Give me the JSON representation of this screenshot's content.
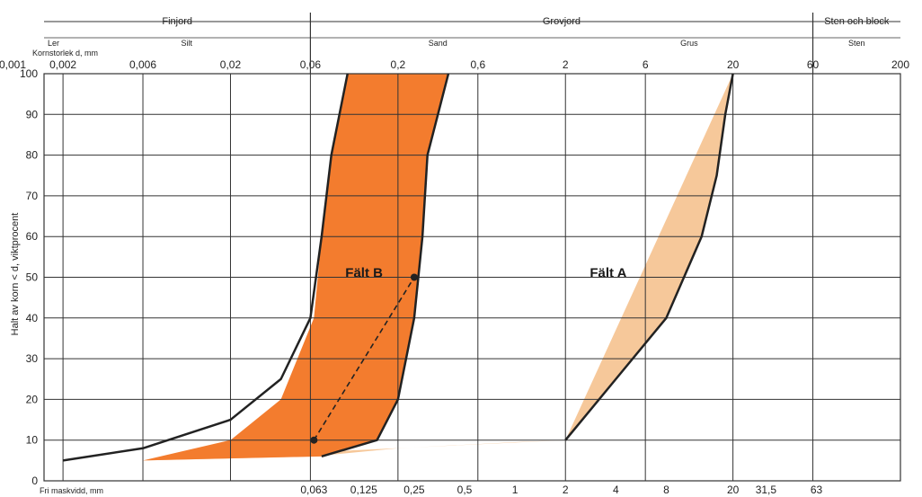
{
  "chart_data": {
    "type": "area",
    "ylabel": "Halt av korn < d, viktprocent",
    "x_scale": "log",
    "xlim": [
      0.001,
      200
    ],
    "ylim": [
      0,
      100
    ],
    "grid": true,
    "top_ticks": [
      "0,001",
      "0,002",
      "0,006",
      "0,02",
      "0,06",
      "0,2",
      "0,6",
      "2",
      "6",
      "20",
      "60",
      "200"
    ],
    "top_tick_values": [
      0.001,
      0.002,
      0.006,
      0.02,
      0.06,
      0.2,
      0.6,
      2,
      6,
      20,
      60,
      200
    ],
    "bottom_ticks": [
      "0,063",
      "0,125",
      "0,25",
      "0,5",
      "1",
      "2",
      "4",
      "8",
      "20",
      "31,5",
      "63"
    ],
    "bottom_tick_values": [
      0.063,
      0.125,
      0.25,
      0.5,
      1,
      2,
      4,
      8,
      20,
      31.5,
      63
    ],
    "y_ticks": [
      0,
      10,
      20,
      30,
      40,
      50,
      60,
      70,
      80,
      90,
      100
    ],
    "bottom_axis_label": "Fri maskvidd, mm",
    "grain_size_label": "Kornstorlek d, mm",
    "main_classes": [
      {
        "label": "Finjord",
        "from": 0.001,
        "to": 0.06
      },
      {
        "label": "Grovjord",
        "from": 0.06,
        "to": 60
      },
      {
        "label": "Sten och block",
        "from": 60,
        "to": 200
      }
    ],
    "sub_classes": [
      {
        "label": "Ler",
        "from": 0.001,
        "to": 0.002
      },
      {
        "label": "Silt",
        "from": 0.002,
        "to": 0.06
      },
      {
        "label": "Sand",
        "from": 0.06,
        "to": 2
      },
      {
        "label": "Grus",
        "from": 2,
        "to": 60
      },
      {
        "label": "Sten",
        "from": 60,
        "to": 200
      }
    ],
    "fields": [
      {
        "name": "Fält A",
        "color": "#f6c89a",
        "left_boundary": [
          [
            0.006,
            5
          ],
          [
            0.063,
            6
          ],
          [
            0.2,
            8
          ],
          [
            1,
            9.5
          ],
          [
            2,
            10
          ]
        ],
        "right_boundary": [
          [
            2,
            10
          ],
          [
            4,
            25
          ],
          [
            8,
            40
          ],
          [
            13,
            60
          ],
          [
            16,
            75
          ],
          [
            18,
            90
          ],
          [
            20,
            100
          ]
        ]
      },
      {
        "name": "Fält B",
        "color": "#f37c2e",
        "left_boundary": [
          [
            0.006,
            5
          ],
          [
            0.02,
            10
          ],
          [
            0.04,
            20
          ],
          [
            0.063,
            40
          ],
          [
            0.07,
            60
          ],
          [
            0.08,
            80
          ],
          [
            0.1,
            100
          ]
        ],
        "right_boundary": [
          [
            0.07,
            6
          ],
          [
            0.15,
            10
          ],
          [
            0.2,
            20
          ],
          [
            0.25,
            40
          ],
          [
            0.28,
            60
          ],
          [
            0.3,
            80
          ],
          [
            0.4,
            100
          ]
        ]
      }
    ],
    "grading_curve_lower": [
      [
        0.002,
        5
      ],
      [
        0.006,
        8
      ],
      [
        0.02,
        15
      ],
      [
        0.04,
        25
      ],
      [
        0.06,
        40
      ],
      [
        0.07,
        60
      ],
      [
        0.08,
        80
      ],
      [
        0.1,
        100
      ]
    ],
    "grading_curve_upper": [
      [
        0.063,
        10
      ],
      [
        0.07,
        8
      ]
    ],
    "reference_points": [
      [
        0.063,
        10
      ],
      [
        0.25,
        50
      ]
    ],
    "reference_line": "dashed"
  }
}
